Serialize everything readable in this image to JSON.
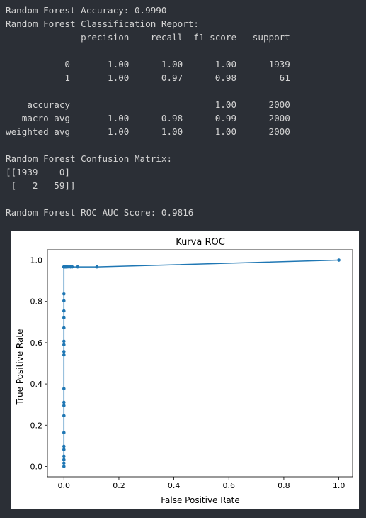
{
  "console": {
    "lines": [
      "Random Forest Accuracy: 0.9990",
      "Random Forest Classification Report:",
      "              precision    recall  f1-score   support",
      "",
      "           0       1.00      1.00      1.00      1939",
      "           1       1.00      0.97      0.98        61",
      "",
      "    accuracy                           1.00      2000",
      "   macro avg       1.00      0.98      0.99      2000",
      "weighted avg       1.00      1.00      1.00      2000",
      "",
      "Random Forest Confusion Matrix:",
      "[[1939    0]",
      " [   2   59]]",
      "",
      "Random Forest ROC AUC Score: 0.9816"
    ]
  },
  "chart_data": {
    "type": "line",
    "title": "Kurva ROC",
    "xlabel": "False Positive Rate",
    "ylabel": "True Positive Rate",
    "xlim": [
      -0.06,
      1.05
    ],
    "ylim": [
      -0.05,
      1.05
    ],
    "xticks": [
      "0.0",
      "0.2",
      "0.4",
      "0.6",
      "0.8",
      "1.0"
    ],
    "yticks": [
      "0.0",
      "0.2",
      "0.4",
      "0.6",
      "0.8",
      "1.0"
    ],
    "series": [
      {
        "color": "#1f77b4",
        "marker": "dot",
        "x": [
          0.0,
          0.0,
          0.0,
          0.0,
          0.0,
          0.0,
          0.0,
          0.0,
          0.0,
          0.0,
          0.0,
          0.0,
          0.0,
          0.0,
          0.0,
          0.0,
          0.0,
          0.0,
          0.0,
          0.0,
          0.0,
          0.0,
          0.0,
          0.0,
          0.0,
          0.002,
          0.004,
          0.006,
          0.008,
          0.012,
          0.018,
          0.024,
          0.03,
          0.05,
          0.12,
          1.0
        ],
        "y": [
          0.0,
          0.016,
          0.033,
          0.05,
          0.082,
          0.098,
          0.164,
          0.246,
          0.295,
          0.311,
          0.377,
          0.541,
          0.557,
          0.59,
          0.607,
          0.672,
          0.721,
          0.754,
          0.803,
          0.836,
          0.967,
          0.967,
          0.967,
          0.967,
          0.967,
          0.967,
          0.967,
          0.967,
          0.967,
          0.967,
          0.967,
          0.967,
          0.967,
          0.967,
          0.967,
          1.0
        ]
      }
    ]
  }
}
